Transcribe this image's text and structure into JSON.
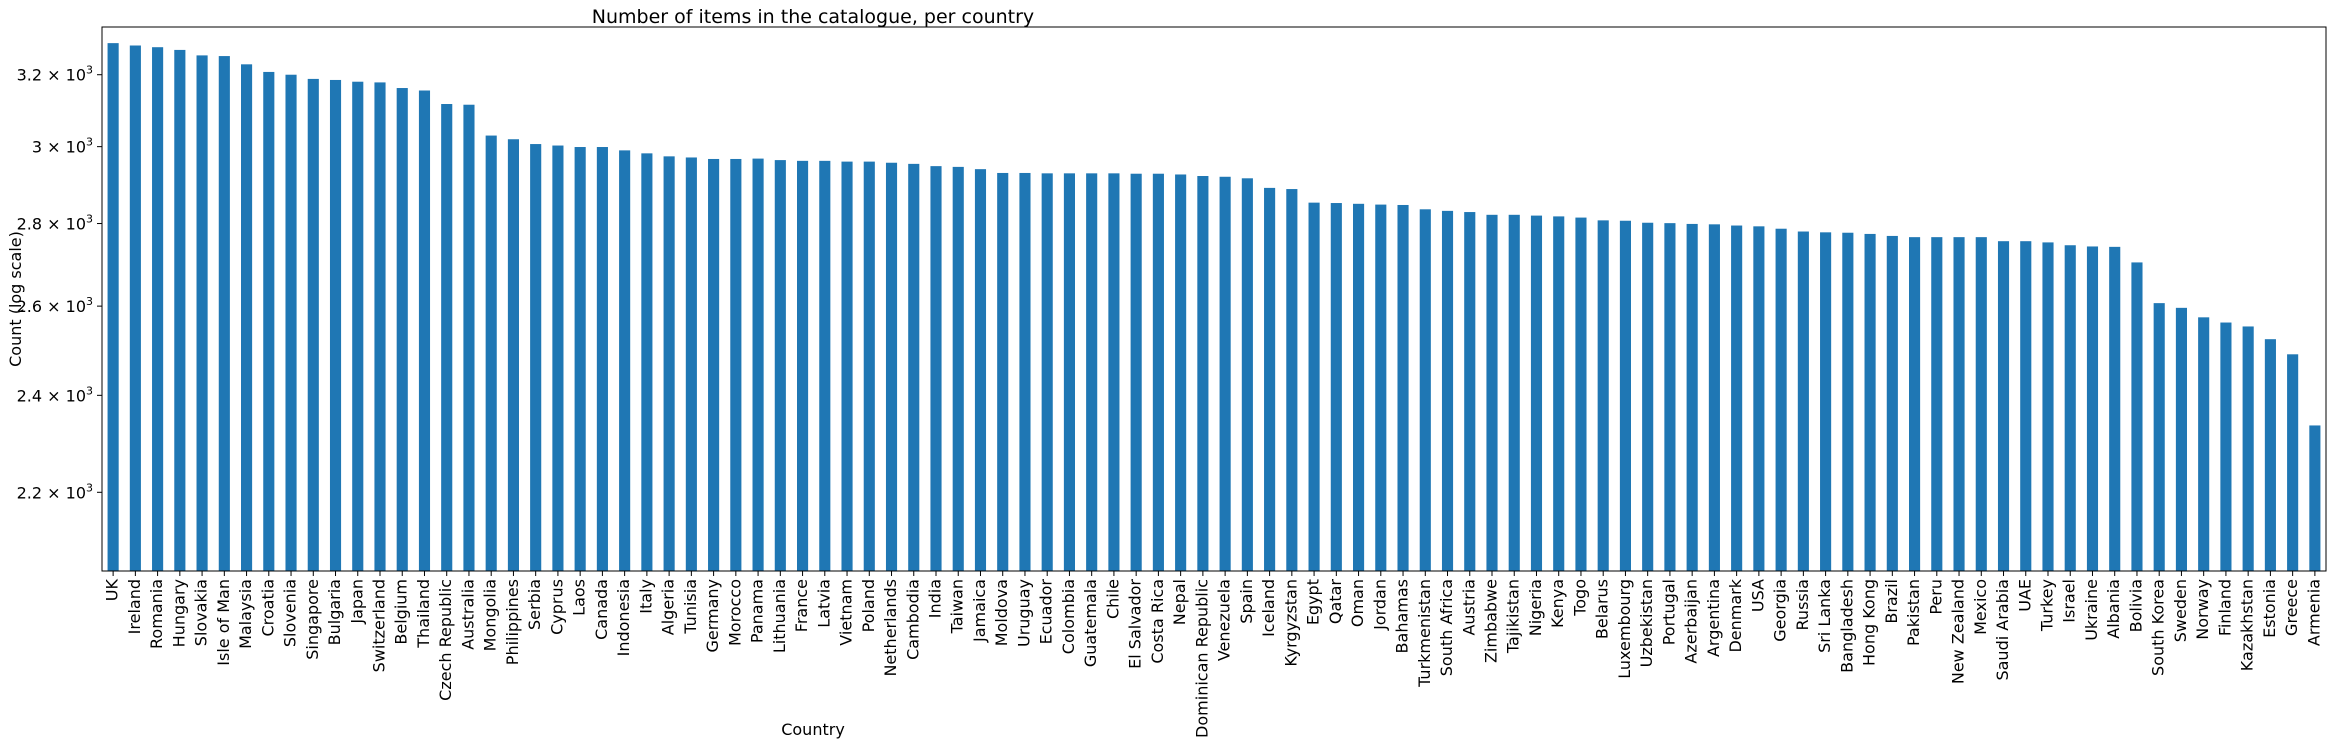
{
  "chart_data": {
    "type": "bar",
    "title": "Number of items in the catalogue, per country",
    "xlabel": "Country",
    "ylabel": "Count (log scale)",
    "yscale": "log",
    "ylim": [
      2050,
      3340
    ],
    "bar_color": "#1f77b4",
    "y_ticks": [
      {
        "value": 2200,
        "label": "2.2 × 10^3"
      },
      {
        "value": 2400,
        "label": "2.4 × 10^3"
      },
      {
        "value": 2600,
        "label": "2.6 × 10^3"
      },
      {
        "value": 2800,
        "label": "2.8 × 10^3"
      },
      {
        "value": 3000,
        "label": "3 × 10^3"
      },
      {
        "value": 3200,
        "label": "3.2 × 10^3"
      }
    ],
    "grid": false,
    "categories": [
      "UK",
      "Ireland",
      "Romania",
      "Hungary",
      "Slovakia",
      "Isle of Man",
      "Malaysia",
      "Croatia",
      "Slovenia",
      "Singapore",
      "Bulgaria",
      "Japan",
      "Switzerland",
      "Belgium",
      "Thailand",
      "Czech Republic",
      "Australia",
      "Mongolia",
      "Philippines",
      "Serbia",
      "Cyprus",
      "Laos",
      "Canada",
      "Indonesia",
      "Italy",
      "Algeria",
      "Tunisia",
      "Germany",
      "Morocco",
      "Panama",
      "Lithuania",
      "France",
      "Latvia",
      "Vietnam",
      "Poland",
      "Netherlands",
      "Cambodia",
      "India",
      "Taiwan",
      "Jamaica",
      "Moldova",
      "Uruguay",
      "Ecuador",
      "Colombia",
      "Guatemala",
      "Chile",
      "El Salvador",
      "Costa Rica",
      "Nepal",
      "Dominican Republic",
      "Venezuela",
      "Spain",
      "Iceland",
      "Kyrgyzstan",
      "Egypt",
      "Qatar",
      "Oman",
      "Jordan",
      "Bahamas",
      "Turkmenistan",
      "South Africa",
      "Austria",
      "Zimbabwe",
      "Tajikistan",
      "Nigeria",
      "Kenya",
      "Togo",
      "Belarus",
      "Luxembourg",
      "Uzbekistan",
      "Portugal",
      "Azerbaijan",
      "Argentina",
      "Denmark",
      "USA",
      "Georgia",
      "Russia",
      "Sri Lanka",
      "Bangladesh",
      "Hong Kong",
      "Brazil",
      "Pakistan",
      "Peru",
      "New Zealand",
      "Mexico",
      "Saudi Arabia",
      "UAE",
      "Turkey",
      "Israel",
      "Ukraine",
      "Albania",
      "Bolivia",
      "South Korea",
      "Sweden",
      "Norway",
      "Finland",
      "Kazakhstan",
      "Estonia",
      "Greece",
      "Armenia"
    ],
    "values": [
      3292,
      3285,
      3280,
      3272,
      3256,
      3254,
      3230,
      3208,
      3200,
      3188,
      3185,
      3180,
      3178,
      3162,
      3155,
      3117,
      3115,
      3030,
      3020,
      3007,
      3003,
      2999,
      2999,
      2990,
      2982,
      2974,
      2971,
      2967,
      2967,
      2968,
      2964,
      2962,
      2962,
      2960,
      2960,
      2957,
      2954,
      2948,
      2946,
      2940,
      2930,
      2930,
      2929,
      2929,
      2929,
      2929,
      2928,
      2928,
      2926,
      2922,
      2920,
      2916,
      2891,
      2888,
      2853,
      2852,
      2850,
      2848,
      2847,
      2836,
      2832,
      2829,
      2822,
      2822,
      2820,
      2818,
      2815,
      2808,
      2807,
      2802,
      2801,
      2799,
      2798,
      2795,
      2793,
      2787,
      2780,
      2778,
      2777,
      2774,
      2769,
      2766,
      2766,
      2766,
      2766,
      2756,
      2756,
      2753,
      2746,
      2743,
      2742,
      2704,
      2607,
      2596,
      2574,
      2562,
      2553,
      2524,
      2490,
      2336
    ]
  }
}
